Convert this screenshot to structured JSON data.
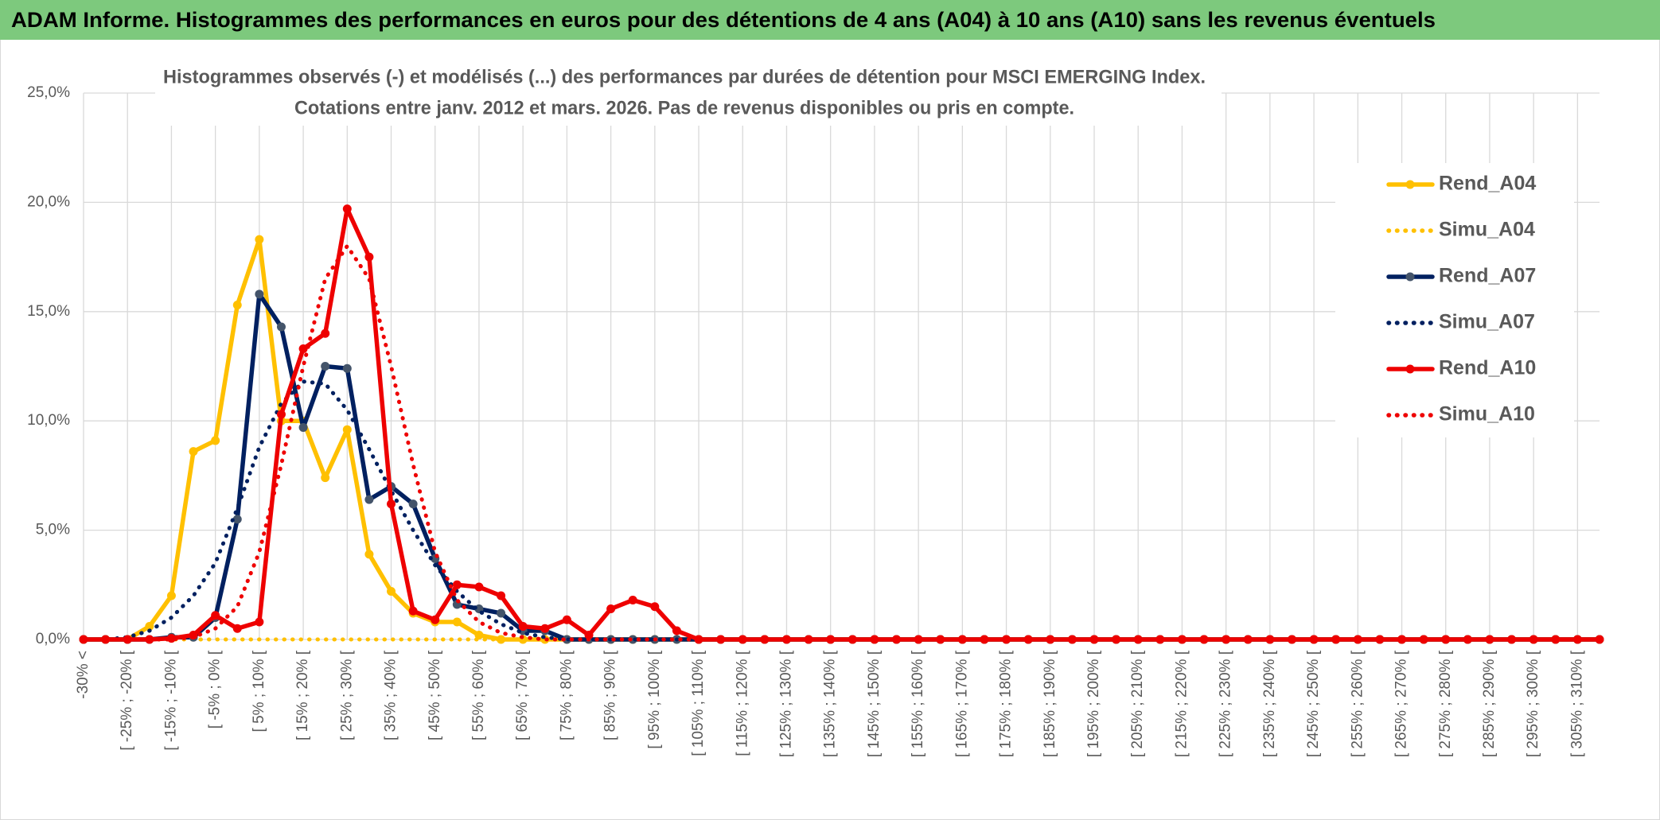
{
  "chart_data": {
    "type": "line",
    "title": "ADAM Informe. Histogrammes des performances en euros pour des détentions de 4 ans (A04) à 10 ans (A10) sans les revenus éventuels",
    "subtitle": [
      "Histogrammes observés (-) et modélisés (...) des performances par durées de détention pour MSCI EMERGING Index.",
      "Cotations entre janv. 2012 et mars. 2026. Pas de revenus disponibles ou pris en compte."
    ],
    "categories": [
      "-30% <",
      null,
      "[ -25% ; -20% [",
      null,
      "[ -15% ; -10% [",
      null,
      "[ -5% ; 0% [",
      null,
      "[ 5% ; 10% [",
      null,
      "[ 15% ; 20% [",
      null,
      "[ 25% ; 30% [",
      null,
      "[ 35% ; 40% [",
      null,
      "[ 45% ; 50% [",
      null,
      "[ 55% ; 60% [",
      null,
      "[ 65% ; 70% [",
      null,
      "[ 75% ; 80% [",
      null,
      "[ 85% ; 90% [",
      null,
      "[ 95% ; 100% [",
      null,
      "[ 105% ; 110% [",
      null,
      "[ 115% ; 120% [",
      null,
      "[ 125% ; 130% [",
      null,
      "[ 135% ; 140% [",
      null,
      "[ 145% ; 150% [",
      null,
      "[ 155% ; 160% [",
      null,
      "[ 165% ; 170% [",
      null,
      "[ 175% ; 180% [",
      null,
      "[ 185% ; 190% [",
      null,
      "[ 195% ; 200% [",
      null,
      "[ 205% ; 210% [",
      null,
      "[ 215% ; 220% [",
      null,
      "[ 225% ; 230% [",
      null,
      "[ 235% ; 240% [",
      null,
      "[ 245% ; 250% [",
      null,
      "[ 255% ; 260% [",
      null,
      "[ 265% ; 270% [",
      null,
      "[ 275% ; 280% [",
      null,
      "[ 285% ; 290% [",
      null,
      "[ 295% ; 300% [",
      null,
      "[ 305% ; 310% [",
      null
    ],
    "series": [
      {
        "name": "Rend_A04",
        "color": "#ffc000",
        "style": "solid",
        "markers": true,
        "values": [
          0,
          0,
          0,
          0.6,
          2.0,
          8.6,
          9.1,
          15.3,
          18.3,
          10.0,
          10.0,
          7.4,
          9.6,
          3.9,
          2.2,
          1.2,
          0.8,
          0.8,
          0.2,
          0,
          0,
          0,
          0,
          0,
          0,
          0,
          0,
          0,
          0,
          0,
          0,
          0,
          0,
          0,
          0,
          0,
          0,
          0,
          0,
          0,
          0,
          0,
          0,
          0,
          0,
          0,
          0,
          0,
          0,
          0,
          0,
          0,
          0,
          0,
          0,
          0,
          0,
          0,
          0,
          0,
          0,
          0,
          0,
          0,
          0,
          0,
          0,
          0,
          0,
          0
        ]
      },
      {
        "name": "Simu_A04",
        "color": "#ffc000",
        "style": "dotted",
        "markers": false,
        "values": [
          0,
          0,
          0,
          0,
          0,
          0,
          0,
          0,
          0,
          0,
          0,
          0,
          0,
          0,
          0,
          0,
          0,
          0,
          0,
          0,
          0,
          0,
          0,
          0,
          0,
          0,
          0,
          0,
          0,
          0,
          0,
          0,
          0,
          0,
          0,
          0,
          0,
          0,
          0,
          0,
          0,
          0,
          0,
          0,
          0,
          0,
          0,
          0,
          0,
          0,
          0,
          0,
          0,
          0,
          0,
          0,
          0,
          0,
          0,
          0,
          0,
          0,
          0,
          0,
          0,
          0,
          0,
          0,
          0,
          0
        ]
      },
      {
        "name": "Rend_A07",
        "color": "#002060",
        "marker_color": "#44546a",
        "style": "solid",
        "markers": true,
        "values": [
          0,
          0,
          0,
          0,
          0.1,
          0.1,
          1.0,
          5.5,
          15.8,
          14.3,
          9.7,
          12.5,
          12.4,
          6.4,
          7.0,
          6.2,
          3.7,
          1.6,
          1.4,
          1.2,
          0.4,
          0.4,
          0,
          0,
          0,
          0,
          0,
          0,
          0,
          0,
          0,
          0,
          0,
          0,
          0,
          0,
          0,
          0,
          0,
          0,
          0,
          0,
          0,
          0,
          0,
          0,
          0,
          0,
          0,
          0,
          0,
          0,
          0,
          0,
          0,
          0,
          0,
          0,
          0,
          0,
          0,
          0,
          0,
          0,
          0,
          0,
          0,
          0,
          0,
          0
        ]
      },
      {
        "name": "Simu_A07",
        "color": "#002060",
        "style": "dotted",
        "markers": false,
        "values": [
          0,
          0,
          0.1,
          0.4,
          1.0,
          2.0,
          3.5,
          6.0,
          8.8,
          10.8,
          11.8,
          11.7,
          10.5,
          8.7,
          6.8,
          5.0,
          3.4,
          2.2,
          1.3,
          0.7,
          0.3,
          0.1,
          0,
          0,
          0,
          0,
          0,
          0,
          0,
          0,
          0,
          0,
          0,
          0,
          0,
          0,
          0,
          0,
          0,
          0,
          0,
          0,
          0,
          0,
          0,
          0,
          0,
          0,
          0,
          0,
          0,
          0,
          0,
          0,
          0,
          0,
          0,
          0,
          0,
          0,
          0,
          0,
          0,
          0,
          0,
          0,
          0,
          0,
          0,
          0
        ]
      },
      {
        "name": "Rend_A10",
        "color": "#ee0000",
        "style": "solid",
        "markers": true,
        "values": [
          0,
          0,
          0,
          0,
          0.05,
          0.2,
          1.1,
          0.5,
          0.8,
          10.3,
          13.3,
          14.0,
          19.7,
          17.5,
          6.2,
          1.3,
          0.9,
          2.5,
          2.4,
          2.0,
          0.6,
          0.5,
          0.9,
          0.2,
          1.4,
          1.8,
          1.5,
          0.4,
          0,
          0,
          0,
          0,
          0,
          0,
          0,
          0,
          0,
          0,
          0,
          0,
          0,
          0,
          0,
          0,
          0,
          0,
          0,
          0,
          0,
          0,
          0,
          0,
          0,
          0,
          0,
          0,
          0,
          0,
          0,
          0,
          0,
          0,
          0,
          0,
          0,
          0,
          0,
          0,
          0,
          0
        ]
      },
      {
        "name": "Simu_A10",
        "color": "#ee0000",
        "style": "dotted",
        "markers": false,
        "values": [
          0,
          0,
          0,
          0,
          0,
          0.1,
          0.5,
          1.5,
          4.0,
          8.0,
          12.5,
          16.5,
          18.0,
          16.5,
          12.5,
          8.0,
          4.0,
          1.8,
          0.8,
          0.3,
          0.1,
          0,
          0,
          0,
          0,
          0,
          0,
          0,
          0,
          0,
          0,
          0,
          0,
          0,
          0,
          0,
          0,
          0,
          0,
          0,
          0,
          0,
          0,
          0,
          0,
          0,
          0,
          0,
          0,
          0,
          0,
          0,
          0,
          0,
          0,
          0,
          0,
          0,
          0,
          0,
          0,
          0,
          0,
          0,
          0,
          0,
          0,
          0,
          0,
          0
        ]
      }
    ],
    "ylim": [
      0,
      25
    ],
    "yticks": [
      {
        "value": 0,
        "label": "0,0%"
      },
      {
        "value": 5,
        "label": "5,0%"
      },
      {
        "value": 10,
        "label": "10,0%"
      },
      {
        "value": 15,
        "label": "15,0%"
      },
      {
        "value": 20,
        "label": "20,0%"
      },
      {
        "value": 25,
        "label": "25,0%"
      }
    ],
    "grid": true
  }
}
